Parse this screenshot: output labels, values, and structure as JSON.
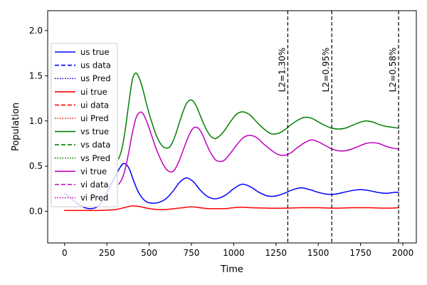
{
  "chart_data": {
    "type": "line",
    "title": "",
    "xlabel": "Time",
    "ylabel": "Population",
    "xlim": [
      -100,
      2080
    ],
    "ylim": [
      -0.35,
      2.22
    ],
    "xticks": [
      0,
      250,
      500,
      750,
      1000,
      1250,
      1500,
      1750,
      2000
    ],
    "yticks": [
      0.0,
      0.5,
      1.0,
      1.5,
      2.0
    ],
    "xtick_labels": [
      "0",
      "250",
      "500",
      "750",
      "1000",
      "1250",
      "1500",
      "1750",
      "2000"
    ],
    "ytick_labels": [
      "0.0",
      "0.5",
      "1.0",
      "1.5",
      "2.0"
    ],
    "grid": false,
    "legend_position": "upper-left",
    "legend": [
      {
        "label": "us true",
        "color": "#0000ff",
        "style": "solid"
      },
      {
        "label": "us data",
        "color": "#0000ff",
        "style": "dashed"
      },
      {
        "label": "us Pred",
        "color": "#0000ff",
        "style": "dotted"
      },
      {
        "label": "ui true",
        "color": "#ff0000",
        "style": "solid"
      },
      {
        "label": "ui data",
        "color": "#ff0000",
        "style": "dashed"
      },
      {
        "label": "ui Pred",
        "color": "#ff0000",
        "style": "dotted"
      },
      {
        "label": "vs true",
        "color": "#008000",
        "style": "solid"
      },
      {
        "label": "vs data",
        "color": "#008000",
        "style": "dashed"
      },
      {
        "label": "vs Pred",
        "color": "#008000",
        "style": "dotted"
      },
      {
        "label": "vi true",
        "color": "#bf00bf",
        "style": "solid"
      },
      {
        "label": "vi data",
        "color": "#bf00bf",
        "style": "dashed"
      },
      {
        "label": "vi Pred",
        "color": "#bf00bf",
        "style": "dotted"
      }
    ],
    "vlines": [
      {
        "x": 1320,
        "label": "L2=1.30%"
      },
      {
        "x": 1580,
        "label": "L2=0.95%"
      },
      {
        "x": 1975,
        "label": "L2=0.58%"
      }
    ],
    "series": [
      {
        "name": "us true",
        "color": "#0000ff",
        "style": "solid",
        "x": [
          0,
          40,
          80,
          120,
          160,
          200,
          240,
          280,
          320,
          350,
          380,
          410,
          440,
          480,
          520,
          560,
          600,
          640,
          680,
          720,
          760,
          800,
          840,
          880,
          920,
          960,
          1000,
          1050,
          1100,
          1150,
          1200,
          1250,
          1300,
          1350,
          1400,
          1450,
          1500,
          1550,
          1600,
          1650,
          1700,
          1750,
          1800,
          1850,
          1900,
          1950,
          1975
        ],
        "y": [
          0.2,
          0.14,
          0.08,
          0.04,
          0.03,
          0.06,
          0.17,
          0.32,
          0.46,
          0.53,
          0.48,
          0.33,
          0.2,
          0.11,
          0.09,
          0.1,
          0.14,
          0.22,
          0.32,
          0.37,
          0.33,
          0.24,
          0.17,
          0.14,
          0.15,
          0.19,
          0.25,
          0.3,
          0.27,
          0.21,
          0.17,
          0.17,
          0.2,
          0.24,
          0.26,
          0.24,
          0.21,
          0.19,
          0.19,
          0.21,
          0.23,
          0.24,
          0.23,
          0.21,
          0.2,
          0.21,
          0.21
        ]
      },
      {
        "name": "ui true",
        "color": "#ff0000",
        "style": "solid",
        "x": [
          0,
          100,
          200,
          300,
          350,
          400,
          450,
          500,
          550,
          600,
          650,
          700,
          750,
          800,
          850,
          900,
          950,
          1000,
          1050,
          1100,
          1200,
          1300,
          1400,
          1500,
          1600,
          1700,
          1800,
          1900,
          1975
        ],
        "y": [
          0.01,
          0.01,
          0.01,
          0.02,
          0.04,
          0.06,
          0.05,
          0.03,
          0.02,
          0.02,
          0.03,
          0.04,
          0.05,
          0.04,
          0.03,
          0.03,
          0.03,
          0.04,
          0.045,
          0.04,
          0.035,
          0.035,
          0.04,
          0.04,
          0.035,
          0.04,
          0.04,
          0.035,
          0.04
        ]
      },
      {
        "name": "vs true",
        "color": "#008000",
        "style": "solid",
        "x": [
          320,
          340,
          360,
          380,
          400,
          420,
          440,
          460,
          480,
          500,
          520,
          540,
          560,
          580,
          600,
          620,
          640,
          660,
          680,
          700,
          720,
          740,
          760,
          780,
          800,
          820,
          840,
          860,
          880,
          900,
          940,
          980,
          1020,
          1060,
          1100,
          1140,
          1180,
          1220,
          1260,
          1300,
          1340,
          1380,
          1420,
          1460,
          1500,
          1540,
          1580,
          1620,
          1660,
          1700,
          1740,
          1780,
          1820,
          1860,
          1900,
          1940,
          1975
        ],
        "y": [
          0.58,
          0.7,
          0.92,
          1.2,
          1.45,
          1.53,
          1.48,
          1.37,
          1.22,
          1.08,
          0.96,
          0.85,
          0.77,
          0.72,
          0.7,
          0.71,
          0.77,
          0.87,
          0.99,
          1.1,
          1.19,
          1.23,
          1.22,
          1.16,
          1.07,
          0.98,
          0.9,
          0.84,
          0.81,
          0.81,
          0.88,
          0.99,
          1.08,
          1.1,
          1.06,
          0.98,
          0.91,
          0.86,
          0.86,
          0.9,
          0.96,
          1.01,
          1.04,
          1.03,
          0.99,
          0.95,
          0.92,
          0.91,
          0.92,
          0.95,
          0.98,
          1.0,
          0.99,
          0.96,
          0.94,
          0.93,
          0.92
        ]
      },
      {
        "name": "vi true",
        "color": "#bf00bf",
        "style": "solid",
        "x": [
          320,
          340,
          360,
          380,
          400,
          420,
          440,
          460,
          480,
          500,
          520,
          540,
          560,
          580,
          600,
          620,
          640,
          660,
          680,
          700,
          720,
          740,
          760,
          780,
          800,
          820,
          840,
          860,
          880,
          900,
          940,
          980,
          1020,
          1060,
          1100,
          1140,
          1180,
          1220,
          1260,
          1300,
          1340,
          1380,
          1420,
          1460,
          1500,
          1540,
          1580,
          1620,
          1660,
          1700,
          1740,
          1780,
          1820,
          1860,
          1900,
          1940,
          1975
        ],
        "y": [
          0.3,
          0.36,
          0.48,
          0.66,
          0.86,
          1.02,
          1.09,
          1.09,
          1.02,
          0.92,
          0.81,
          0.7,
          0.61,
          0.53,
          0.47,
          0.44,
          0.44,
          0.49,
          0.57,
          0.67,
          0.77,
          0.86,
          0.92,
          0.93,
          0.9,
          0.83,
          0.74,
          0.66,
          0.6,
          0.56,
          0.56,
          0.64,
          0.74,
          0.82,
          0.84,
          0.81,
          0.74,
          0.68,
          0.63,
          0.62,
          0.65,
          0.71,
          0.76,
          0.79,
          0.77,
          0.73,
          0.69,
          0.67,
          0.67,
          0.69,
          0.72,
          0.75,
          0.76,
          0.75,
          0.72,
          0.7,
          0.69
        ]
      }
    ]
  }
}
